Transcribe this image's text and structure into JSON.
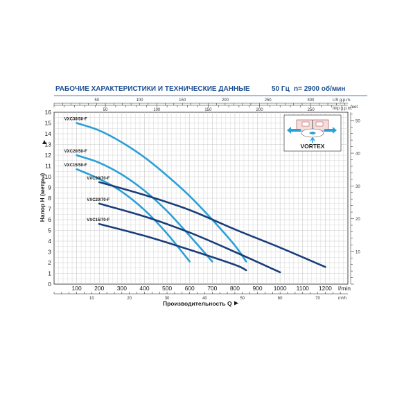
{
  "header": {
    "title": "РАБОЧИЕ ХАРАКТЕРИСТИКИ И ТЕХНИЧЕСКИЕ ДАННЫЕ",
    "freq": "50 Гц",
    "speed": "n= 2900 об/мин"
  },
  "colors": {
    "accent": "#1d4f91",
    "light_curve": "#2aa0d8",
    "dark_curve": "#1a3e7a",
    "grid": "#c9c9c9"
  },
  "chart_data": {
    "type": "line",
    "xlabel": "Производительность Q",
    "ylabel": "Напор H (метры)",
    "xlim": [
      0,
      1300
    ],
    "ylim": [
      0,
      16
    ],
    "x_unit": "l/min",
    "x_ticks": [
      100,
      200,
      300,
      400,
      500,
      600,
      700,
      800,
      900,
      1000,
      1100,
      1200
    ],
    "y_ticks": [
      0,
      1,
      2,
      3,
      4,
      5,
      6,
      7,
      8,
      9,
      10,
      11,
      12,
      13,
      14,
      15,
      16
    ],
    "top_axis_1": {
      "unit": "US g.p.m.",
      "ticks": [
        50,
        100,
        150,
        200,
        250,
        300
      ]
    },
    "top_axis_2": {
      "unit": "Imp g.p.m.",
      "ticks": [
        50,
        100,
        150,
        200,
        250
      ]
    },
    "bottom_axis_2": {
      "unit": "m³/h",
      "ticks": [
        10,
        20,
        30,
        40,
        50,
        60,
        70
      ]
    },
    "right_axis": {
      "unit": "feet",
      "ticks": [
        10,
        20,
        30,
        40,
        50
      ]
    },
    "series": [
      {
        "name": "VXC30/50-F",
        "style": "light",
        "x": [
          100,
          200,
          300,
          400,
          500,
          600,
          700,
          800,
          850
        ],
        "y": [
          15.0,
          14.3,
          13.2,
          11.8,
          10.1,
          8.2,
          6.0,
          3.6,
          2.1
        ]
      },
      {
        "name": "VXC20/50-F",
        "style": "light",
        "x": [
          100,
          200,
          300,
          400,
          500,
          600,
          700
        ],
        "y": [
          12.0,
          11.3,
          10.2,
          8.7,
          6.8,
          4.5,
          2.1
        ]
      },
      {
        "name": "VXC15/50-F",
        "style": "light",
        "x": [
          100,
          200,
          300,
          400,
          500,
          600
        ],
        "y": [
          10.7,
          9.8,
          8.6,
          6.9,
          4.7,
          2.1
        ]
      },
      {
        "name": "VXC30/70-F",
        "style": "dark",
        "x": [
          200,
          400,
          600,
          800,
          1000,
          1200
        ],
        "y": [
          9.5,
          8.3,
          6.9,
          5.1,
          3.4,
          1.6
        ]
      },
      {
        "name": "VXC20/70-F",
        "style": "dark",
        "x": [
          200,
          400,
          600,
          800,
          1000
        ],
        "y": [
          7.5,
          6.3,
          4.8,
          3.0,
          1.1
        ]
      },
      {
        "name": "VXC15/70-F",
        "style": "dark",
        "x": [
          200,
          400,
          600,
          800,
          850
        ],
        "y": [
          5.6,
          4.5,
          3.2,
          1.8,
          1.3
        ]
      }
    ],
    "inset": {
      "label": "VORTEX"
    }
  }
}
